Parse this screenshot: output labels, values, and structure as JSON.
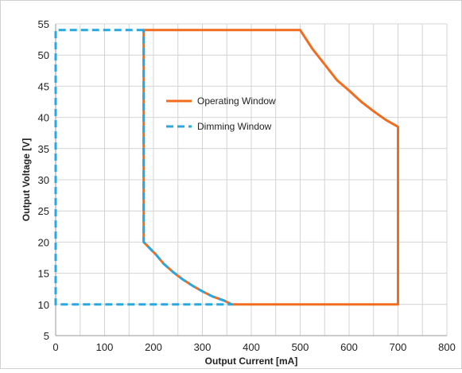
{
  "chart_data": {
    "type": "line",
    "title": "",
    "xlabel": "Output Current [mA]",
    "ylabel": "Output Voltage [V]",
    "xlim": [
      0,
      800
    ],
    "ylim": [
      5,
      55
    ],
    "x_ticks": [
      0,
      100,
      200,
      300,
      400,
      500,
      600,
      700,
      800
    ],
    "y_ticks": [
      5,
      10,
      15,
      20,
      25,
      30,
      35,
      40,
      45,
      50,
      55
    ],
    "x_minor_step": 50,
    "grid": true,
    "legend_position": "inside-left",
    "series": [
      {
        "name": "Operating Window",
        "color": "#F26C1F",
        "style": "solid",
        "points": [
          [
            180,
            20
          ],
          [
            180,
            54
          ],
          [
            500,
            54
          ],
          [
            525,
            51
          ],
          [
            550,
            48.5
          ],
          [
            575,
            46
          ],
          [
            600,
            44.3
          ],
          [
            625,
            42.5
          ],
          [
            650,
            41
          ],
          [
            675,
            39.6
          ],
          [
            700,
            38.5
          ],
          [
            700,
            10
          ],
          [
            360,
            10
          ],
          [
            345,
            10.6
          ],
          [
            320,
            11.3
          ],
          [
            300,
            12.1
          ],
          [
            280,
            13
          ],
          [
            260,
            14
          ],
          [
            240,
            15.2
          ],
          [
            220,
            16.6
          ],
          [
            205,
            18
          ],
          [
            180,
            20
          ]
        ]
      },
      {
        "name": "Dimming Window",
        "color": "#29A8E0",
        "style": "dashed",
        "points": [
          [
            180,
            54
          ],
          [
            0,
            54
          ],
          [
            0,
            10
          ],
          [
            360,
            10
          ],
          [
            345,
            10.6
          ],
          [
            320,
            11.3
          ],
          [
            300,
            12.1
          ],
          [
            280,
            13
          ],
          [
            260,
            14
          ],
          [
            240,
            15.2
          ],
          [
            220,
            16.6
          ],
          [
            205,
            18
          ],
          [
            180,
            20
          ],
          [
            180,
            54
          ]
        ]
      }
    ]
  }
}
